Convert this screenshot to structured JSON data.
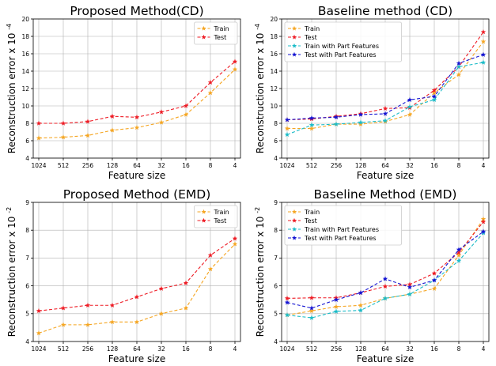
{
  "chart_data": [
    {
      "type": "line",
      "title": "Proposed Method(CD)",
      "xlabel": "Feature size",
      "ylabel": "Reconstruction error x 10",
      "ylabel_exp": "-4",
      "categories": [
        "1024",
        "512",
        "256",
        "128",
        "64",
        "32",
        "16",
        "8",
        "4"
      ],
      "ylim": [
        4,
        20
      ],
      "yticks": [
        "4",
        "6",
        "8",
        "10",
        "12",
        "14",
        "16",
        "18",
        "20"
      ],
      "grid": true,
      "legend_position": "top-right",
      "series": [
        {
          "name": "Train",
          "color": "#f5a623",
          "marker": "star",
          "values": [
            6.3,
            6.4,
            6.6,
            7.2,
            7.5,
            8.1,
            9.0,
            11.5,
            14.2
          ]
        },
        {
          "name": "Test",
          "color": "#ee1c25",
          "marker": "star",
          "values": [
            8.0,
            8.0,
            8.2,
            8.8,
            8.7,
            9.3,
            10.0,
            12.7,
            15.1
          ]
        }
      ]
    },
    {
      "type": "line",
      "title": "Baseline method (CD)",
      "xlabel": "Feature size",
      "ylabel": "Reconstruction error x 10",
      "ylabel_exp": "-4",
      "categories": [
        "1024",
        "512",
        "256",
        "128",
        "64",
        "32",
        "16",
        "8",
        "4"
      ],
      "ylim": [
        4,
        20
      ],
      "yticks": [
        "4",
        "6",
        "8",
        "10",
        "12",
        "14",
        "16",
        "18",
        "20"
      ],
      "grid": true,
      "legend_position": "top-left",
      "series": [
        {
          "name": "Train",
          "color": "#f5a623",
          "marker": "star",
          "values": [
            7.4,
            7.4,
            7.9,
            7.9,
            8.2,
            9.0,
            11.5,
            13.6,
            17.4
          ]
        },
        {
          "name": "Test",
          "color": "#ee1c25",
          "marker": "star",
          "values": [
            8.4,
            8.5,
            8.8,
            9.1,
            9.7,
            9.8,
            11.8,
            14.5,
            18.5
          ]
        },
        {
          "name": "Train with Part Features",
          "color": "#1cbcc8",
          "marker": "star",
          "values": [
            6.7,
            7.8,
            7.9,
            8.1,
            8.3,
            9.9,
            10.7,
            14.5,
            15.0
          ]
        },
        {
          "name": "Test with Part Features",
          "color": "#1414d2",
          "marker": "star",
          "values": [
            8.4,
            8.6,
            8.7,
            9.0,
            9.1,
            10.7,
            11.1,
            14.9,
            15.9
          ]
        }
      ]
    },
    {
      "type": "line",
      "title": "Proposed Method (EMD)",
      "xlabel": "Feature size",
      "ylabel": "Reconstruction error x 10",
      "ylabel_exp": "-2",
      "categories": [
        "1024",
        "512",
        "256",
        "128",
        "64",
        "32",
        "16",
        "8",
        "4"
      ],
      "ylim": [
        4,
        9
      ],
      "yticks": [
        "4",
        "5",
        "6",
        "7",
        "8",
        "9"
      ],
      "grid": true,
      "legend_position": "top-right",
      "series": [
        {
          "name": "Train",
          "color": "#f5a623",
          "marker": "star",
          "values": [
            4.3,
            4.6,
            4.6,
            4.7,
            4.7,
            5.0,
            5.2,
            6.6,
            7.5
          ]
        },
        {
          "name": "Test",
          "color": "#ee1c25",
          "marker": "star",
          "values": [
            5.1,
            5.2,
            5.3,
            5.3,
            5.6,
            5.9,
            6.1,
            7.1,
            7.7
          ]
        }
      ]
    },
    {
      "type": "line",
      "title": "Baseline Method (EMD)",
      "xlabel": "Feature size",
      "ylabel": "Reconstruction error x 10",
      "ylabel_exp": "-2",
      "categories": [
        "1024",
        "512",
        "256",
        "128",
        "64",
        "32",
        "16",
        "8",
        "4"
      ],
      "ylim": [
        4,
        9
      ],
      "yticks": [
        "4",
        "5",
        "6",
        "7",
        "8",
        "9"
      ],
      "grid": true,
      "legend_position": "top-left",
      "series": [
        {
          "name": "Train",
          "color": "#f5a623",
          "marker": "star",
          "values": [
            4.95,
            5.1,
            5.25,
            5.3,
            5.55,
            5.7,
            5.9,
            7.1,
            8.4
          ]
        },
        {
          "name": "Test",
          "color": "#ee1c25",
          "marker": "star",
          "values": [
            5.55,
            5.57,
            5.57,
            5.75,
            5.98,
            6.05,
            6.45,
            7.2,
            8.3
          ]
        },
        {
          "name": "Train with Part Features",
          "color": "#1cbcc8",
          "marker": "star",
          "values": [
            4.95,
            4.85,
            5.08,
            5.12,
            5.55,
            5.7,
            6.2,
            6.9,
            7.9
          ]
        },
        {
          "name": "Test with Part Features",
          "color": "#1414d2",
          "marker": "star",
          "values": [
            5.4,
            5.2,
            5.5,
            5.75,
            6.25,
            5.95,
            6.2,
            7.3,
            7.95
          ]
        }
      ]
    }
  ]
}
